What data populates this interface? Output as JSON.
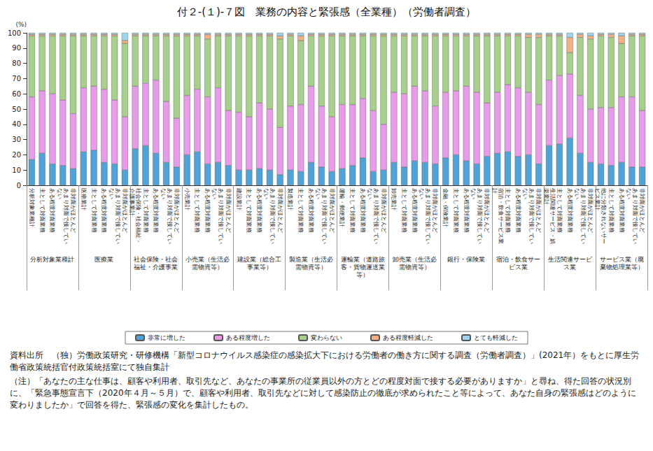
{
  "chart_data": {
    "type": "bar",
    "title": "付２-(１)-７図　業務の内容と緊張感（全業種）（労働者調査）",
    "y_axis_label": "(%)",
    "categories": [
      "分析対象業種計",
      "主として対面業務",
      "ある程度対面業務",
      "あまり対面で接していない",
      "非対面がほとんど",
      "医療業計",
      "主として対面業務",
      "ある程度対面業務",
      "あまり対面で接していない",
      "非対面がほとんど",
      "社会保険・社会福祉・介護事業計",
      "主として対面業務",
      "ある程度対面業務",
      "あまり対面で接していない",
      "非対面がほとんど",
      "小売業計",
      "主として対面業務",
      "ある程度対面業務",
      "あまり対面で接していない",
      "非対面がほとんど",
      "建設業計",
      "主として対面業務",
      "ある程度対面業務",
      "あまり対面で接していない",
      "非対面がほとんど",
      "製造業計",
      "主として対面業務",
      "ある程度対面業務",
      "あまり対面で接していない",
      "非対面がほとんど",
      "運輸・郵便業計",
      "主として対面業務",
      "ある程度対面業務",
      "あまり対面で接していない",
      "非対面がほとんど",
      "卸売業計",
      "主として対面業務",
      "ある程度対面業務",
      "あまり対面で接していない",
      "非対面がほとんど",
      "金融・保険業計",
      "主として対面業務",
      "ある程度対面業務",
      "あまり対面で接していない",
      "非対面がほとんど",
      "宿泊・飲食サービス業計",
      "主として対面業務",
      "ある程度対面業務",
      "あまり対面で接していない",
      "非対面がほとんど",
      "生活関連サービス・娯楽業計",
      "主として対面業務",
      "ある程度対面業務",
      "あまり対面で接していない",
      "非対面がほとんど",
      "他に分類されないサービス業計",
      "主として対面業務",
      "ある程度対面業務",
      "あまり対面で接していない",
      "非対面がほとんど"
    ],
    "groups": [
      "分析対象業種計",
      "医療業",
      "社会保険・社会福祉・介護事業",
      "小売業（生活必需物資等）",
      "建設業（総合工事業等）",
      "製造業（生活必需物資等）",
      "運輸業（道路旅客・貨物運送業等）",
      "卸売業（生活必需物資等）",
      "銀行・保険業",
      "宿泊・飲食サービス業",
      "生活関連サービス業",
      "サービス業（廃棄物処理業等）"
    ],
    "series": [
      {
        "name": "非常に増した",
        "color": "#4fa3d9",
        "values": [
          17,
          21,
          14,
          13,
          11,
          22,
          23,
          15,
          14,
          10,
          24,
          26,
          21,
          15,
          12,
          20,
          22,
          14,
          15,
          13,
          10,
          10,
          11,
          10,
          7,
          10,
          9,
          15,
          12,
          9,
          11,
          13,
          18,
          9,
          10,
          15,
          12,
          16,
          15,
          14,
          18,
          20,
          16,
          14,
          19,
          21,
          22,
          19,
          20,
          14,
          26,
          27,
          31,
          21,
          15,
          14,
          13,
          15,
          12,
          12
        ]
      },
      {
        "name": "ある程度増した",
        "color": "#e79be8",
        "values": [
          41,
          41,
          46,
          43,
          36,
          42,
          42,
          48,
          42,
          35,
          41,
          41,
          48,
          40,
          32,
          39,
          41,
          44,
          49,
          36,
          38,
          35,
          43,
          40,
          31,
          42,
          44,
          50,
          40,
          36,
          42,
          40,
          39,
          40,
          30,
          46,
          48,
          49,
          47,
          38,
          43,
          42,
          49,
          47,
          35,
          40,
          44,
          45,
          41,
          39,
          43,
          45,
          42,
          38,
          35,
          37,
          38,
          43,
          46,
          37
        ]
      },
      {
        "name": "変わらない",
        "color": "#a8d08d",
        "values": [
          40,
          36,
          38,
          42,
          51,
          34,
          33,
          35,
          42,
          48,
          33,
          31,
          29,
          43,
          54,
          39,
          35,
          38,
          34,
          49,
          50,
          53,
          44,
          48,
          58,
          46,
          42,
          33,
          46,
          53,
          45,
          45,
          41,
          49,
          58,
          37,
          38,
          33,
          36,
          46,
          37,
          36,
          33,
          37,
          44,
          37,
          32,
          34,
          36,
          44,
          29,
          26,
          14,
          38,
          46,
          47,
          46,
          35,
          40,
          49
        ]
      },
      {
        "name": "ある程度軽減した",
        "color": "#f4b183",
        "values": [
          1,
          1,
          1,
          1,
          1,
          1,
          1,
          1,
          1,
          2,
          1,
          1,
          1,
          1,
          1,
          1,
          1,
          3,
          1,
          1,
          1,
          1,
          1,
          1,
          2,
          1,
          3,
          1,
          1,
          1,
          1,
          1,
          1,
          1,
          1,
          1,
          1,
          1,
          1,
          1,
          1,
          1,
          1,
          1,
          1,
          1,
          1,
          1,
          2,
          2,
          1,
          1,
          10,
          2,
          2,
          1,
          2,
          5,
          1,
          1
        ]
      },
      {
        "name": "とても軽減した",
        "color": "#9fd4ee",
        "values": [
          1,
          1,
          1,
          1,
          1,
          1,
          1,
          1,
          1,
          5,
          1,
          1,
          1,
          1,
          1,
          1,
          1,
          1,
          1,
          1,
          1,
          1,
          1,
          1,
          2,
          1,
          2,
          1,
          1,
          1,
          1,
          1,
          1,
          1,
          1,
          1,
          1,
          1,
          1,
          1,
          1,
          1,
          1,
          1,
          1,
          1,
          1,
          1,
          1,
          1,
          1,
          1,
          3,
          1,
          2,
          1,
          1,
          2,
          1,
          1
        ]
      }
    ],
    "ylim": [
      0,
      100
    ],
    "yticks": [
      0,
      10,
      20,
      30,
      40,
      50,
      60,
      70,
      80,
      90,
      100
    ],
    "stacked": true,
    "legend": "bottom",
    "grid": false
  },
  "source": "資料出所　（独）労働政策研究・研修機構「新型コロナウイルス感染症の感染拡大下における労働者の働き方に関する調査（労働者調査）」(2021年）をもとに厚生労働省政策統括官付政策統括室にて独自集計",
  "note": "（注）「あなたの主な仕事は、顧客や利用者、取引先など、あなたの事業所の従業員以外の方とどの程度対面で接する必要がありますか」と尋ね、得た回答の状況別に、「緊急事態宣言下（2020年４月～５月）で、顧客や利用者、取引先などに対して感染防止の徹底が求められたこと等によって、あなた自身の緊張感はどのように変わりましたか」で回答を得た、緊張感の変化を集計したもの。"
}
